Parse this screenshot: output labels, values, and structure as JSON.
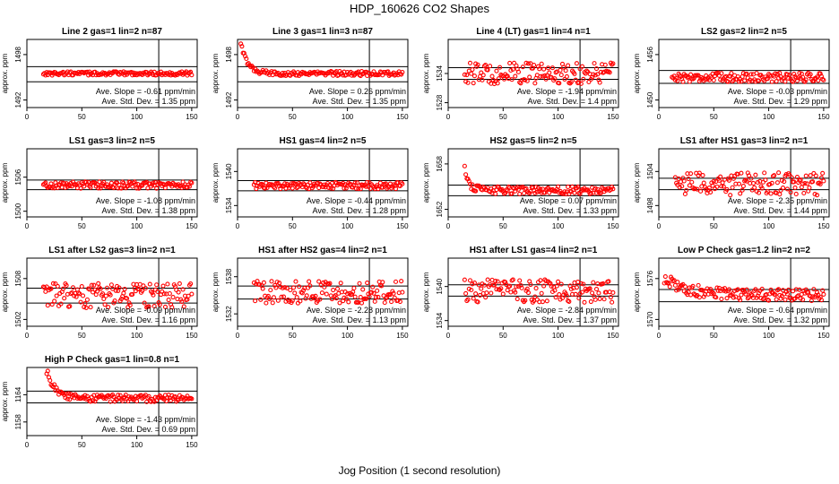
{
  "page": {
    "title": "HDP_160626  CO2 Shapes",
    "xlabel": "Jog Position (1 second resolution)"
  },
  "chart_data": [
    {
      "type": "scatter",
      "title": "Line 2 gas=1 lin=2 n=87",
      "ylabel": "approx. ppm",
      "xlim": [
        0,
        155
      ],
      "ylim": [
        1491,
        1500
      ],
      "yticks": [
        1492,
        1498
      ],
      "xticks": [
        0,
        50,
        100,
        150
      ],
      "hlines": [
        1496.4,
        1494.4
      ],
      "vline": 120,
      "slope": "-0.61",
      "stddev": "1.35",
      "shape": {
        "start": 15,
        "end": 150,
        "base": 1495.5,
        "amp": 0.25,
        "spike": 0,
        "decay": 0
      }
    },
    {
      "type": "scatter",
      "title": "Line 3 gas=1 lin=3 n=87",
      "ylabel": "approx. ppm",
      "xlim": [
        0,
        155
      ],
      "ylim": [
        1491,
        1500
      ],
      "yticks": [
        1492,
        1498
      ],
      "xticks": [
        0,
        50,
        100,
        150
      ],
      "hlines": [
        1496.4,
        1494.4
      ],
      "vline": 120,
      "slope": "0.26",
      "stddev": "1.35",
      "shape": {
        "start": 3,
        "end": 150,
        "base": 1495.5,
        "amp": 0.3,
        "spike": 4,
        "decay": 6
      }
    },
    {
      "type": "scatter",
      "title": "Line 4 (LT) gas=1 lin=4 n=1",
      "ylabel": "approx. ppm",
      "xlim": [
        0,
        155
      ],
      "ylim": [
        1527,
        1541
      ],
      "yticks": [
        1528,
        1534
      ],
      "xticks": [
        0,
        50,
        100,
        150
      ],
      "hlines": [
        1535.2,
        1532.8
      ],
      "vline": 120,
      "slope": "-1.94",
      "stddev": "1.4",
      "shape": {
        "start": 15,
        "end": 150,
        "base": 1534,
        "amp": 2.2,
        "spike": 0,
        "decay": 0
      }
    },
    {
      "type": "scatter",
      "title": "LS2 gas=2 lin=2 n=5",
      "ylabel": "approx. ppm",
      "xlim": [
        0,
        155
      ],
      "ylim": [
        1449,
        1458
      ],
      "yticks": [
        1450,
        1456
      ],
      "xticks": [
        0,
        50,
        100,
        150
      ],
      "hlines": [
        1453.9,
        1452.2
      ],
      "vline": 120,
      "slope": "-0.03",
      "stddev": "1.29",
      "shape": {
        "start": 12,
        "end": 150,
        "base": 1453,
        "amp": 0.6,
        "spike": 0,
        "decay": 0
      }
    },
    {
      "type": "scatter",
      "title": "LS1 gas=3 lin=2 n=5",
      "ylabel": "approx. ppm",
      "xlim": [
        0,
        155
      ],
      "ylim": [
        1499,
        1511
      ],
      "yticks": [
        1500,
        1506
      ],
      "xticks": [
        0,
        50,
        100,
        150
      ],
      "hlines": [
        1505.5,
        1503.8
      ],
      "vline": 120,
      "slope": "-1.08",
      "stddev": "1.38",
      "shape": {
        "start": 15,
        "end": 150,
        "base": 1504.6,
        "amp": 0.6,
        "spike": 0,
        "decay": 0
      }
    },
    {
      "type": "scatter",
      "title": "HS1 gas=4 lin=2 n=5",
      "ylabel": "approx. ppm",
      "xlim": [
        0,
        155
      ],
      "ylim": [
        1532,
        1544
      ],
      "yticks": [
        1534,
        1540
      ],
      "xticks": [
        0,
        50,
        100,
        150
      ],
      "hlines": [
        1538.4,
        1536.6
      ],
      "vline": 120,
      "slope": "-0.44",
      "stddev": "1.28",
      "shape": {
        "start": 15,
        "end": 150,
        "base": 1537.5,
        "amp": 0.6,
        "spike": 0,
        "decay": 0
      }
    },
    {
      "type": "scatter",
      "title": "HS2 gas=5 lin=2 n=5",
      "ylabel": "approx. ppm",
      "xlim": [
        0,
        155
      ],
      "ylim": [
        1651,
        1660
      ],
      "yticks": [
        1652,
        1658
      ],
      "xticks": [
        0,
        50,
        100,
        150
      ],
      "hlines": [
        1655.2,
        1653.8
      ],
      "vline": 120,
      "slope": "0.07",
      "stddev": "1.33",
      "shape": {
        "start": 15,
        "end": 150,
        "base": 1654.5,
        "amp": 0.5,
        "spike": 3,
        "decay": 4
      }
    },
    {
      "type": "scatter",
      "title": "LS1 after HS1 gas=3 lin=2 n=1",
      "ylabel": "approx. ppm",
      "xlim": [
        0,
        155
      ],
      "ylim": [
        1496,
        1508
      ],
      "yticks": [
        1498,
        1504
      ],
      "xticks": [
        0,
        50,
        100,
        150
      ],
      "hlines": [
        1502.8,
        1500.8
      ],
      "vline": 120,
      "slope": "-2.35",
      "stddev": "1.44",
      "shape": {
        "start": 15,
        "end": 150,
        "base": 1501.8,
        "amp": 2.0,
        "spike": 0,
        "decay": 0
      }
    },
    {
      "type": "scatter",
      "title": "LS1 after LS2 gas=3 lin=2 n=1",
      "ylabel": "approx. ppm",
      "xlim": [
        0,
        155
      ],
      "ylim": [
        1501,
        1511
      ],
      "yticks": [
        1502,
        1508
      ],
      "xticks": [
        0,
        50,
        100,
        150
      ],
      "hlines": [
        1506.6,
        1504.4
      ],
      "vline": 120,
      "slope": "-0.09",
      "stddev": "1.16",
      "shape": {
        "start": 15,
        "end": 150,
        "base": 1505.5,
        "amp": 1.8,
        "spike": 0,
        "decay": 0
      }
    },
    {
      "type": "scatter",
      "title": "HS1 after HS2 gas=4 lin=2 n=1",
      "ylabel": "approx. ppm",
      "xlim": [
        0,
        155
      ],
      "ylim": [
        1530,
        1541
      ],
      "yticks": [
        1532,
        1538
      ],
      "xticks": [
        0,
        50,
        100,
        150
      ],
      "hlines": [
        1536.5,
        1534.4
      ],
      "vline": 120,
      "slope": "-2.28",
      "stddev": "1.13",
      "shape": {
        "start": 15,
        "end": 150,
        "base": 1535.5,
        "amp": 1.8,
        "spike": 0,
        "decay": 0
      }
    },
    {
      "type": "scatter",
      "title": "HS1 after LS1 gas=4 lin=2 n=1",
      "ylabel": "approx. ppm",
      "xlim": [
        0,
        155
      ],
      "ylim": [
        1533,
        1545
      ],
      "yticks": [
        1534,
        1540
      ],
      "xticks": [
        0,
        50,
        100,
        150
      ],
      "hlines": [
        1540.3,
        1538.3
      ],
      "vline": 120,
      "slope": "-2.84",
      "stddev": "1.37",
      "shape": {
        "start": 15,
        "end": 150,
        "base": 1539.2,
        "amp": 2.0,
        "spike": 0,
        "decay": 0
      }
    },
    {
      "type": "scatter",
      "title": "Low P Check gas=1.2 lin=2 n=2",
      "ylabel": "approx. ppm",
      "xlim": [
        0,
        155
      ],
      "ylim": [
        1569,
        1579
      ],
      "yticks": [
        1570,
        1576
      ],
      "xticks": [
        0,
        50,
        100,
        150
      ],
      "hlines": [
        1574.4,
        1572.6
      ],
      "vline": 120,
      "slope": "-0.64",
      "stddev": "1.32",
      "shape": {
        "start": 5,
        "end": 150,
        "base": 1573.6,
        "amp": 0.9,
        "spike": 2.5,
        "decay": 20
      }
    },
    {
      "type": "scatter",
      "title": "High P Check gas=1 lin=0.8 n=1",
      "ylabel": "approx. ppm",
      "xlim": [
        0,
        155
      ],
      "ylim": [
        1155,
        1170
      ],
      "yticks": [
        1158,
        1164
      ],
      "xticks": [
        0,
        50,
        100,
        150
      ],
      "hlines": [
        1164.8,
        1162.2
      ],
      "vline": 120,
      "slope": "-1.43",
      "stddev": "0.69",
      "shape": {
        "start": 18,
        "end": 150,
        "base": 1163.2,
        "amp": 0.8,
        "spike": 6,
        "decay": 8
      }
    }
  ],
  "labels": {
    "slope_prefix": "Ave. Slope = ",
    "slope_suffix": " ppm/min",
    "std_prefix": "Ave. Std. Dev. = ",
    "std_suffix": " ppm"
  },
  "colors": {
    "points": "#ff0000",
    "axes": "#000000"
  }
}
